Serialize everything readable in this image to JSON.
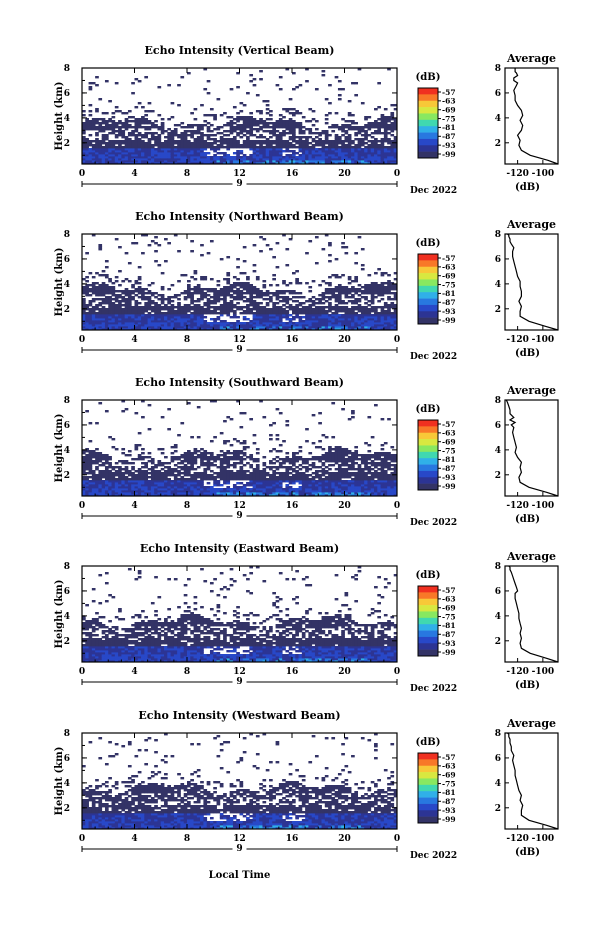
{
  "figure": {
    "xaxis_label": "Local Time",
    "colorbar_unit": "(dB)",
    "colorbar_ticks": [
      "-57",
      "-63",
      "-69",
      "-75",
      "-81",
      "-87",
      "-93",
      "-99"
    ],
    "colorbar_colors": [
      "#f03020",
      "#f87828",
      "#f8c838",
      "#d8e840",
      "#88e860",
      "#40d8b0",
      "#30b0e8",
      "#2878e0",
      "#2848c8",
      "#2c3494",
      "#333366"
    ],
    "avg_title": "Average",
    "avg_xlabel": "(dB)",
    "date_label": "Dec 2022",
    "day_label": "9"
  },
  "chart_data": [
    {
      "type": "heatmap",
      "title": "Echo Intensity (Vertical Beam)",
      "ylabel": "Height (km)",
      "x_ticks": [
        "0",
        "4",
        "8",
        "12",
        "16",
        "20",
        "0"
      ],
      "y_ticks": [
        "2",
        "4",
        "6",
        "8"
      ],
      "xlim": [
        0,
        24
      ],
      "ylim": [
        0.3,
        8.0
      ],
      "profile_xticks": [
        "-120",
        "-100"
      ],
      "profile_xlim": [
        -130,
        -88
      ],
      "profile_x": [
        -88,
        -96,
        -110,
        -117,
        -119,
        -118,
        -120,
        -117,
        -116,
        -118,
        -116,
        -117,
        -120,
        -122,
        -122,
        -123,
        -121,
        -120,
        -123,
        -123,
        -120,
        -121,
        -122,
        -122,
        -122,
        -122
      ],
      "profile_y": [
        0.3,
        0.6,
        1.0,
        1.4,
        1.8,
        2.2,
        2.6,
        3.0,
        3.4,
        3.8,
        4.2,
        4.6,
        5.0,
        5.4,
        5.8,
        6.2,
        6.6,
        6.8,
        7.0,
        7.2,
        7.4,
        7.6,
        7.7,
        7.8,
        7.9,
        8.0
      ]
    },
    {
      "type": "heatmap",
      "title": "Echo Intensity (Northward Beam)",
      "ylabel": "Height (km)",
      "x_ticks": [
        "0",
        "4",
        "8",
        "12",
        "16",
        "20",
        "0"
      ],
      "y_ticks": [
        "2",
        "4",
        "6",
        "8"
      ],
      "xlim": [
        0,
        24
      ],
      "ylim": [
        0.3,
        8.0
      ],
      "profile_xticks": [
        "-120",
        "-100"
      ],
      "profile_xlim": [
        -130,
        -88
      ],
      "profile_x": [
        -88,
        -98,
        -111,
        -118,
        -118,
        -117,
        -119,
        -117,
        -117,
        -118,
        -118,
        -120,
        -121,
        -122,
        -123,
        -124,
        -124,
        -123,
        -125,
        -126,
        -126,
        -127,
        -127,
        -128
      ],
      "profile_y": [
        0.3,
        0.6,
        1.0,
        1.4,
        1.8,
        2.2,
        2.6,
        3.0,
        3.4,
        3.8,
        4.2,
        4.6,
        5.0,
        5.4,
        5.8,
        6.2,
        6.6,
        6.9,
        7.2,
        7.4,
        7.6,
        7.8,
        7.9,
        8.0
      ]
    },
    {
      "type": "heatmap",
      "title": "Echo Intensity (Southward Beam)",
      "ylabel": "Height (km)",
      "x_ticks": [
        "0",
        "4",
        "8",
        "12",
        "16",
        "20",
        "0"
      ],
      "y_ticks": [
        "2",
        "4",
        "6",
        "8"
      ],
      "xlim": [
        0,
        24
      ],
      "ylim": [
        0.3,
        8.0
      ],
      "profile_xticks": [
        "-120",
        "-100"
      ],
      "profile_xlim": [
        -130,
        -88
      ],
      "profile_x": [
        -88,
        -97,
        -111,
        -118,
        -119,
        -117,
        -118,
        -117,
        -120,
        -122,
        -121,
        -122,
        -123,
        -124,
        -123,
        -125,
        -122,
        -126,
        -123,
        -126,
        -126,
        -127,
        -128,
        -129
      ],
      "profile_y": [
        0.3,
        0.6,
        1.0,
        1.4,
        1.8,
        2.2,
        2.6,
        3.0,
        3.4,
        3.8,
        4.2,
        4.6,
        5.0,
        5.4,
        5.8,
        6.0,
        6.2,
        6.4,
        6.6,
        6.9,
        7.2,
        7.5,
        7.8,
        8.0
      ]
    },
    {
      "type": "heatmap",
      "title": "Echo Intensity (Eastward Beam)",
      "ylabel": "Height (km)",
      "x_ticks": [
        "0",
        "4",
        "8",
        "12",
        "16",
        "20",
        "0"
      ],
      "y_ticks": [
        "2",
        "4",
        "6",
        "8"
      ],
      "xlim": [
        0,
        24
      ],
      "ylim": [
        0.3,
        8.0
      ],
      "profile_xticks": [
        "-120",
        "-100"
      ],
      "profile_xlim": [
        -130,
        -88
      ],
      "profile_x": [
        -88,
        -97,
        -110,
        -117,
        -118,
        -117,
        -118,
        -117,
        -118,
        -119,
        -119,
        -120,
        -121,
        -122,
        -122,
        -120,
        -121,
        -122,
        -123,
        -124,
        -125,
        -126,
        -126,
        -127
      ],
      "profile_y": [
        0.3,
        0.6,
        1.0,
        1.4,
        1.8,
        2.2,
        2.6,
        3.0,
        3.4,
        3.8,
        4.2,
        4.6,
        5.0,
        5.4,
        5.8,
        6.0,
        6.3,
        6.6,
        6.9,
        7.2,
        7.5,
        7.7,
        7.9,
        8.0
      ]
    },
    {
      "type": "heatmap",
      "title": "Echo Intensity (Westward Beam)",
      "ylabel": "Height (km)",
      "x_ticks": [
        "0",
        "4",
        "8",
        "12",
        "16",
        "20",
        "0"
      ],
      "y_ticks": [
        "2",
        "4",
        "6",
        "8"
      ],
      "xlim": [
        0,
        24
      ],
      "ylim": [
        0.3,
        8.0
      ],
      "profile_xticks": [
        "-120",
        "-100"
      ],
      "profile_xlim": [
        -130,
        -88
      ],
      "profile_x": [
        -88,
        -97,
        -111,
        -117,
        -117,
        -116,
        -118,
        -117,
        -119,
        -120,
        -121,
        -122,
        -122,
        -123,
        -124,
        -123,
        -125,
        -125,
        -126,
        -126,
        -127,
        -127,
        -128
      ],
      "profile_y": [
        0.3,
        0.6,
        1.0,
        1.4,
        1.8,
        2.2,
        2.6,
        3.0,
        3.4,
        3.8,
        4.2,
        4.6,
        5.0,
        5.4,
        5.8,
        6.2,
        6.6,
        6.9,
        7.2,
        7.5,
        7.7,
        7.9,
        8.0
      ]
    }
  ]
}
